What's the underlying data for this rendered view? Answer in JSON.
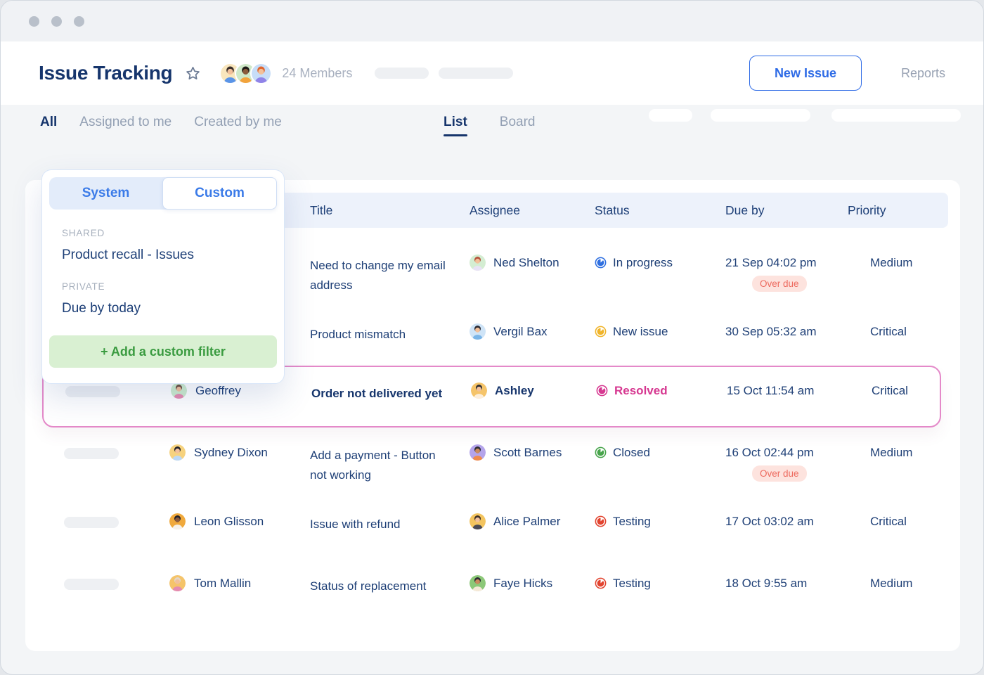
{
  "header": {
    "title": "Issue Tracking",
    "members": "24 Members",
    "new_issue_label": "New Issue",
    "reports_label": "Reports",
    "avatars": [
      {
        "bg": "#f9e6bd",
        "hair": "#3a2f2b",
        "skin": "#f2c09a",
        "shirt": "#5a94e8"
      },
      {
        "bg": "#cfe8c8",
        "hair": "#1f1a18",
        "skin": "#8a5a3b",
        "shirt": "#f2a33c"
      },
      {
        "bg": "#c7ddf8",
        "hair": "#e0662f",
        "skin": "#f2c09a",
        "shirt": "#9083e8"
      }
    ]
  },
  "filter_tabs": {
    "all": "All",
    "assigned": "Assigned to me",
    "created": "Created by me"
  },
  "view_tabs": {
    "list": "List",
    "board": "Board"
  },
  "popup": {
    "tab_system": "System",
    "tab_custom": "Custom",
    "shared_label": "SHARED",
    "shared_item": "Product recall - Issues",
    "private_label": "PRIVATE",
    "private_item": "Due by today",
    "add_button": "+ Add a custom filter"
  },
  "table": {
    "columns": [
      "Title",
      "Assignee",
      "Status",
      "Due by",
      "Priority"
    ],
    "rows": [
      {
        "title": "Need to change my email address",
        "assignee": "Ned Shelton",
        "assignee_avatar": {
          "bg": "#d4edd2",
          "hair": "#b5533c",
          "skin": "#f2c09a",
          "shirt": "#e8e2f5"
        },
        "status": "In progress",
        "status_color": "#2e6fe0",
        "due": "21 Sep 04:02 pm",
        "overdue": "Over due",
        "priority": "Medium"
      },
      {
        "title": "Product mismatch",
        "assignee": "Vergil Bax",
        "assignee_avatar": {
          "bg": "#cfe4f7",
          "hair": "#2b2b33",
          "skin": "#f2c09a",
          "shirt": "#79b5e8"
        },
        "status": "New issue",
        "status_color": "#f0b429",
        "due": "30 Sep 05:32 am",
        "priority": "Critical"
      },
      {
        "reporter": "Geoffrey",
        "reporter_avatar": {
          "bg": "#cdeccd",
          "hair": "#6b4a3a",
          "skin": "#f2c09a",
          "shirt": "#e58bb0"
        },
        "title": "Order not delivered yet",
        "assignee": "Ashley",
        "assignee_avatar": {
          "bg": "#f5c46a",
          "hair": "#2b2b33",
          "skin": "#f2c09a",
          "shirt": "#fdeeda"
        },
        "status": "Resolved",
        "status_color": "#d63790",
        "due": "15 Oct 11:54 am",
        "priority": "Critical"
      },
      {
        "reporter": "Sydney Dixon",
        "reporter_avatar": {
          "bg": "#f6d27e",
          "hair": "#1f1f29",
          "skin": "#f2c09a",
          "shirt": "#bcd8f5"
        },
        "title": "Add a payment - Button not working",
        "assignee": "Scott Barnes",
        "assignee_avatar": {
          "bg": "#b4a4ea",
          "hair": "#2b2b33",
          "skin": "#c98a5e",
          "shirt": "#f08a4b"
        },
        "status": "Closed",
        "status_color": "#47a44b",
        "due": "16 Oct 02:44 pm",
        "overdue": "Over due",
        "priority": "Medium"
      },
      {
        "reporter": "Leon Glisson",
        "reporter_avatar": {
          "bg": "#f0a93c",
          "hair": "#1f1f29",
          "skin": "#8a5a3b",
          "shirt": "#f6f1e9"
        },
        "title": "Issue with refund",
        "assignee": "Alice Palmer",
        "assignee_avatar": {
          "bg": "#f3c45f",
          "hair": "#3c2f28",
          "skin": "#f2c09a",
          "shirt": "#4a4a55"
        },
        "status": "Testing",
        "status_color": "#e2432e",
        "due": "17 Oct 03:02 am",
        "priority": "Critical"
      },
      {
        "reporter": "Tom Mallin",
        "reporter_avatar": {
          "bg": "#f5c46a",
          "hair": "#e3d7c8",
          "skin": "#f2c09a",
          "shirt": "#e58bb0"
        },
        "title": "Status of replacement",
        "assignee": "Faye Hicks",
        "assignee_avatar": {
          "bg": "#8cc878",
          "hair": "#2b2b33",
          "skin": "#c98a5e",
          "shirt": "#f6e9d8"
        },
        "status": "Testing",
        "status_color": "#e2432e",
        "due": "18 Oct 9:55 am",
        "priority": "Medium"
      }
    ]
  },
  "colors": {
    "accent": "#2e6be6",
    "navy": "#1d3f77",
    "muted": "#98a2b3",
    "selected_border": "#e489c9",
    "overdue_bg": "#fde3de",
    "overdue_text": "#ed6a5e",
    "filter_button_bg": "#d9f0d2",
    "filter_button_text": "#3a9b40",
    "table_header_bg": "#edf2fb"
  }
}
